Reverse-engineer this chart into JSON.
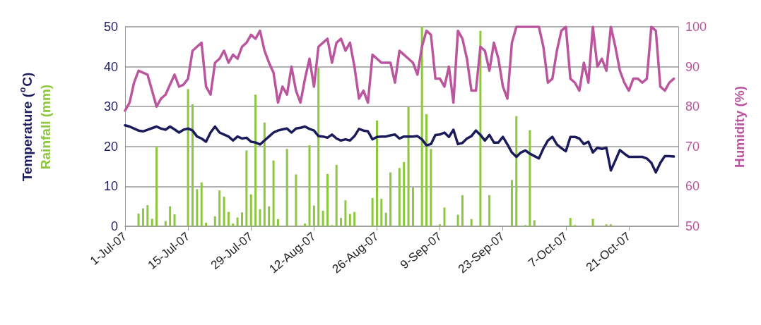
{
  "chart_data": {
    "type": "line",
    "ylabel": "Temperature ($^{o}$C)",
    "y2label": "Humidity (%)",
    "marker": "none",
    "grid": "y",
    "x": [
      "--07-01",
      "--07-02",
      "--07-03",
      "--07-04",
      "--07-05",
      "--07-06",
      "--07-07",
      "--07-08",
      "--07-09",
      "--07-10",
      "--07-11",
      "--07-12",
      "--07-13",
      "--07-14",
      "--07-15",
      "--07-16",
      "--07-17",
      "--07-18",
      "--07-19",
      "--07-20",
      "--07-21",
      "--07-22",
      "--07-23",
      "--07-24",
      "--07-25",
      "--07-26",
      "--07-27",
      "--07-28",
      "--07-29",
      "--07-30",
      "--07-31",
      "--08-01",
      "--08-02",
      "--08-03",
      "--08-04",
      "--08-05",
      "--08-06",
      "--08-07",
      "--08-08",
      "--08-09",
      "--08-10",
      "--08-11",
      "--08-12",
      "--08-13",
      "--08-14",
      "--08-15",
      "--08-16",
      "--08-17",
      "--08-18",
      "--08-19",
      "--08-20",
      "--08-21",
      "--08-22",
      "--08-23",
      "--08-24",
      "--08-25",
      "--08-26",
      "--08-27",
      "--08-28",
      "--08-29",
      "--08-30",
      "--08-31",
      "--09-01",
      "--09-02",
      "--09-03",
      "--09-04",
      "--09-05",
      "--09-06",
      "--09-07",
      "--09-08",
      "--09-09",
      "--09-10",
      "--09-11",
      "--09-12",
      "--09-13",
      "--09-14",
      "--09-15",
      "--09-16",
      "--09-17",
      "--09-18",
      "--09-19",
      "--09-20",
      "--09-21",
      "--09-22",
      "--09-23",
      "--09-24",
      "--09-25",
      "--09-26",
      "--09-27",
      "--09-28",
      "--09-29",
      "--09-30",
      "--10-01",
      "--10-02",
      "--10-03",
      "--10-04",
      "--10-05",
      "--10-06",
      "--10-07",
      "--10-08",
      "--10-09",
      "--10-10",
      "--10-11",
      "--10-12",
      "--10-13",
      "--10-14",
      "--10-15",
      "--10-16",
      "--10-17",
      "--10-18",
      "--10-19",
      "--10-20",
      "--10-21",
      "--10-22",
      "--10-23",
      "--10-24",
      "--10-25",
      "--10-26",
      "--10-27",
      "--10-28",
      "--10-29",
      "--10-30",
      "--10-31"
    ],
    "xlim": [
      "--07-01",
      "--11-01"
    ],
    "xticks": [
      {
        "value": "--07-01",
        "label": "1-Jul-07"
      },
      {
        "value": "--07-15",
        "label": "15-Jul-07"
      },
      {
        "value": "--07-29",
        "label": "29-Jul-07"
      },
      {
        "value": "--08-12",
        "label": "12-Aug-07"
      },
      {
        "value": "--08-26",
        "label": "26-Aug-07"
      },
      {
        "value": "--09-09",
        "label": "9-Sep-07"
      },
      {
        "value": "--09-23",
        "label": "23-Sep-07"
      },
      {
        "value": "--10-07",
        "label": "7-Oct-07"
      },
      {
        "value": "--10-21",
        "label": "21-Oct-07"
      }
    ],
    "ylim": [
      0,
      50
    ],
    "yticks": [
      0,
      10,
      20,
      30,
      40,
      50
    ],
    "y2lim": [
      50,
      100
    ],
    "y2ticks": [
      50,
      60,
      70,
      80,
      90,
      100
    ],
    "series": [
      {
        "type": "bar",
        "name": "Rainfall (mm)",
        "color": "#8dc63f",
        "values": [
          0,
          0,
          0,
          3.2,
          4.5,
          5.3,
          1.9,
          20,
          0,
          1.3,
          5,
          3,
          0,
          0,
          34.4,
          30.6,
          9.3,
          11,
          0.9,
          0,
          2.5,
          9,
          7.4,
          3.6,
          0.7,
          2.2,
          3.5,
          19,
          8,
          33,
          4.3,
          26,
          5,
          16.5,
          1.8,
          0,
          19.4,
          0,
          13,
          0,
          0.7,
          20.3,
          5.2,
          39.7,
          3.9,
          13.1,
          0.3,
          15.4,
          2.1,
          6.5,
          3.1,
          3.6,
          0,
          0,
          0,
          7.1,
          26.5,
          6.9,
          3.4,
          13.5,
          0,
          14.6,
          16.1,
          29.9,
          9.7,
          0,
          50,
          28.1,
          19.4,
          0,
          0.5,
          4.7,
          0,
          0,
          2.9,
          7.8,
          0,
          1.8,
          0,
          49,
          0,
          7.8,
          0,
          0,
          0,
          0,
          11.6,
          27.6,
          0,
          0.3,
          24.1,
          1.5,
          0,
          0,
          0,
          0,
          0,
          0,
          0,
          2.1,
          0.3,
          0,
          0,
          0,
          1.9,
          0,
          0,
          0.5,
          0.5,
          0,
          0,
          0,
          0,
          0,
          0,
          0,
          0,
          0,
          0,
          0,
          0,
          0,
          0
        ]
      },
      {
        "type": "line",
        "axis": "y2",
        "color": "#bb569e",
        "values": [
          79,
          81,
          86,
          89,
          88.5,
          88,
          84,
          80,
          82,
          83,
          85.5,
          88,
          85,
          85.5,
          87,
          94,
          95,
          96,
          85,
          83,
          91,
          92,
          94,
          91,
          93,
          92,
          95,
          96,
          98,
          97,
          99,
          94,
          91,
          88.5,
          81,
          85,
          83,
          90,
          84,
          81,
          87,
          92,
          85,
          95,
          96,
          97,
          91,
          96,
          97,
          94,
          96,
          90,
          82,
          84,
          81,
          93,
          92,
          91,
          91,
          91,
          86,
          94,
          93,
          92,
          91,
          88,
          95,
          99,
          98,
          87,
          87,
          85,
          90,
          81,
          99,
          97,
          92,
          84,
          84,
          95,
          94,
          89,
          96,
          92,
          85,
          82,
          96,
          100,
          100,
          100,
          100,
          100,
          100,
          95,
          86,
          87,
          94,
          99,
          100,
          87,
          86,
          84,
          91,
          86,
          100,
          90,
          92,
          89,
          100,
          95,
          89,
          86,
          84,
          87,
          87,
          86,
          87,
          100,
          99,
          85,
          84,
          86,
          87
        ]
      },
      {
        "color": "#1b1b5c",
        "values": [
          25.3,
          25,
          24.5,
          24,
          23.8,
          24.2,
          24.6,
          25,
          24.5,
          24.2,
          25,
          24.3,
          23.5,
          24.2,
          24.5,
          24,
          22.5,
          22,
          21.2,
          23.5,
          25,
          23.5,
          23,
          22.5,
          21.5,
          22.5,
          22,
          22.2,
          21.2,
          21,
          20.5,
          21.5,
          22.5,
          23.5,
          24,
          24.3,
          24.5,
          23.5,
          24.5,
          24.7,
          25,
          24.4,
          24,
          22.6,
          22.5,
          22.2,
          23,
          22,
          21.5,
          21.8,
          21.5,
          22.6,
          24.4,
          24,
          23.8,
          21.8,
          22.4,
          22.5,
          22.5,
          22.8,
          23,
          22,
          22.5,
          22.5,
          22.5,
          22.6,
          21.8,
          20.3,
          20.6,
          22.9,
          23,
          23.5,
          22.4,
          24.2,
          20.6,
          20.9,
          22,
          22.6,
          24,
          22.9,
          21.5,
          22.9,
          21,
          21,
          22.4,
          20.5,
          18.5,
          17.4,
          18.5,
          19,
          18.2,
          17.6,
          17,
          19.5,
          21.5,
          22.4,
          20.5,
          19.6,
          18.8,
          22.4,
          22.4,
          22,
          20.6,
          21.2,
          18.5,
          19.7,
          19.4,
          19.7,
          14,
          16.5,
          19.1,
          18.2,
          17.4,
          17.4,
          17.4,
          17.4,
          17,
          15.9,
          13.5,
          15.9,
          17.6,
          17.6,
          17.5
        ]
      }
    ]
  }
}
